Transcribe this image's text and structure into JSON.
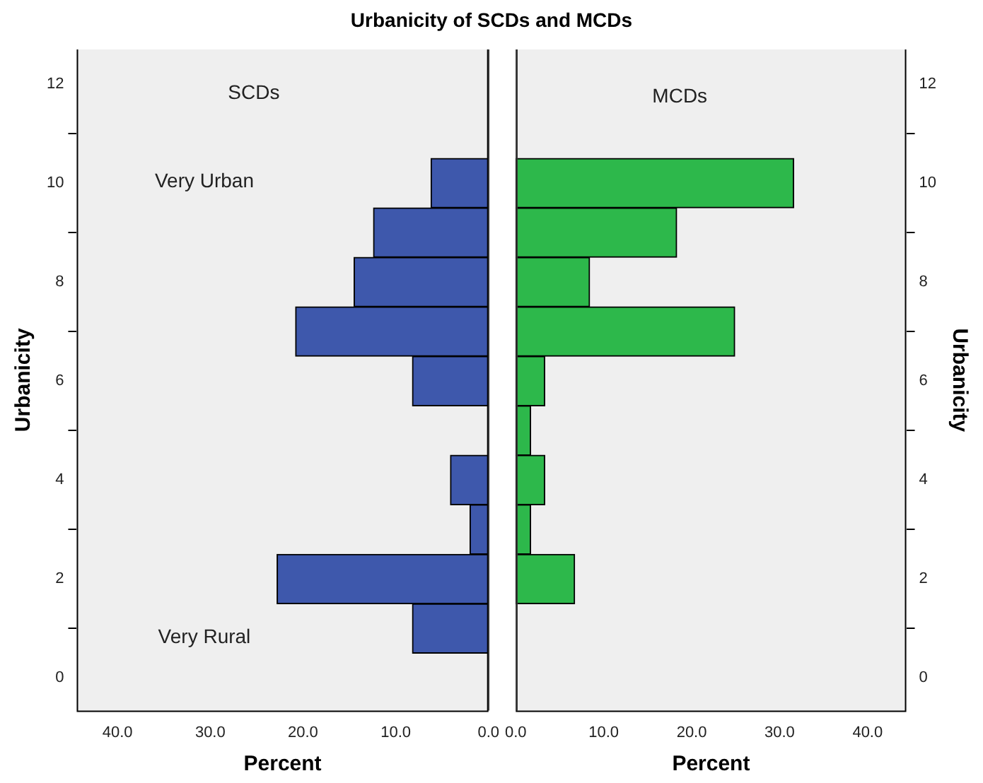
{
  "chart_data": [
    {
      "type": "histogram",
      "title": "Urbanicity of SCDs and MCDs",
      "orientation": "horizontal",
      "xlabel": "Percent",
      "ylabel": "Urbanicity",
      "bins": [
        0.5,
        1.5,
        2.5,
        3.5,
        4.5,
        5.5,
        6.5,
        7.5,
        8.5,
        9.5,
        10.5
      ],
      "values": [
        8.2,
        22.8,
        2.0,
        4.1,
        0,
        8.2,
        20.8,
        14.5,
        12.4,
        6.2
      ],
      "color": "#3e58ac",
      "xlim": [
        44.4,
        0
      ],
      "xticks": [
        {
          "value": 40,
          "label": "40.0"
        },
        {
          "value": 30,
          "label": "30.0"
        },
        {
          "value": 20,
          "label": "20.0"
        },
        {
          "value": 10,
          "label": "10.0"
        },
        {
          "value": 0,
          "label": "0.0"
        }
      ],
      "ylim": [
        -0.66,
        12.7
      ],
      "yticks": [
        0,
        2,
        4,
        6,
        8,
        10,
        12
      ],
      "annotations": [
        "SCDs",
        "Very Urban",
        "Very Rural"
      ],
      "grid": false,
      "legend": false
    },
    {
      "type": "histogram",
      "orientation": "horizontal",
      "xlabel": "Percent",
      "ylabel": "Urbanicity",
      "bins": [
        0.5,
        1.5,
        2.5,
        3.5,
        4.5,
        5.5,
        6.5,
        7.5,
        8.5,
        9.5,
        10.5
      ],
      "values": [
        0,
        6.7,
        1.7,
        3.3,
        1.7,
        3.3,
        24.9,
        8.4,
        18.3,
        31.6
      ],
      "color": "#2db84b",
      "xlim": [
        0,
        44.4
      ],
      "xticks": [
        {
          "value": 0,
          "label": "0.0"
        },
        {
          "value": 10,
          "label": "10.0"
        },
        {
          "value": 20,
          "label": "20.0"
        },
        {
          "value": 30,
          "label": "30.0"
        },
        {
          "value": 40,
          "label": "40.0"
        }
      ],
      "ylim": [
        -0.66,
        12.7
      ],
      "yticks": [
        0,
        2,
        4,
        6,
        8,
        10,
        12
      ],
      "annotations": [
        "MCDs"
      ],
      "grid": false,
      "legend": false
    }
  ]
}
